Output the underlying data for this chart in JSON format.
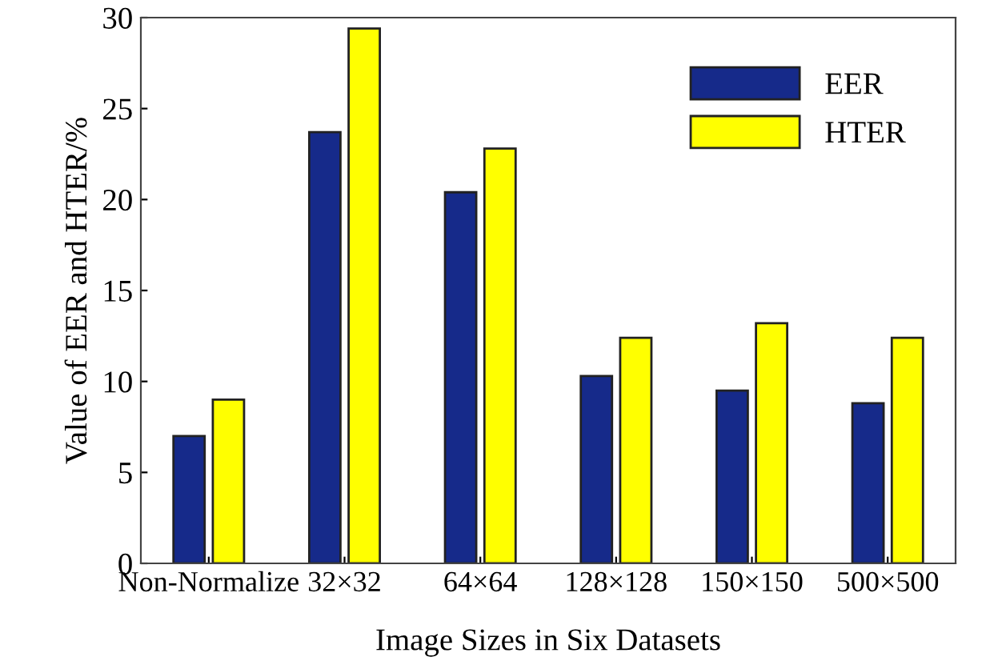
{
  "chart_data": {
    "type": "bar",
    "xlabel": "Image Sizes in Six Datasets",
    "ylabel": "Value of EER and HTER/%",
    "categories": [
      "Non-Normalize",
      "32×32",
      "64×64",
      "128×128",
      "150×150",
      "500×500"
    ],
    "series": [
      {
        "name": "EER",
        "color": "#162a8a",
        "values": [
          7.0,
          23.7,
          20.4,
          10.3,
          9.5,
          8.8
        ]
      },
      {
        "name": "HTER",
        "color": "#ffff00",
        "values": [
          9.0,
          29.4,
          22.8,
          12.4,
          13.2,
          12.4
        ]
      }
    ],
    "ylim": [
      0,
      30
    ],
    "yticks": [
      0,
      5,
      10,
      15,
      20,
      25,
      30
    ],
    "grid": false,
    "legend": "top right"
  }
}
